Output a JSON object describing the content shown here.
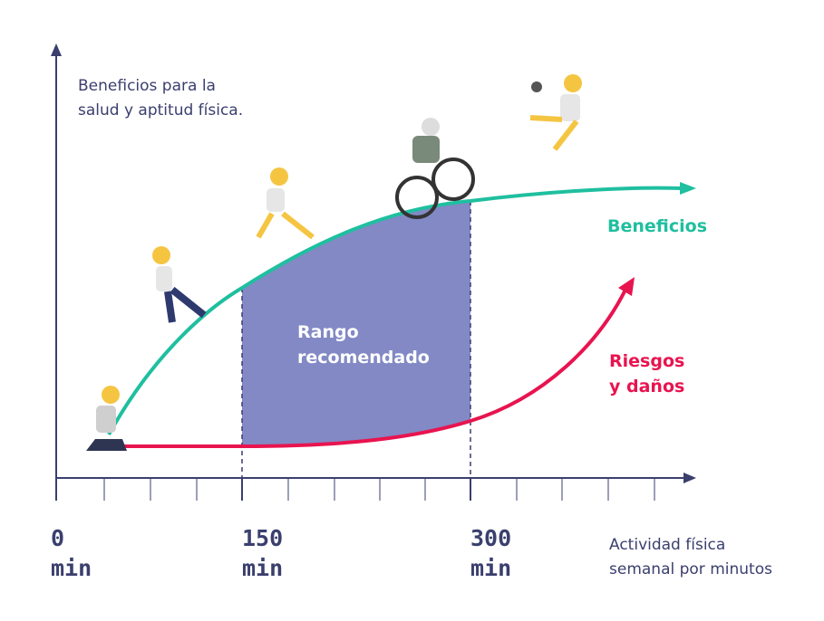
{
  "y_axis_label": [
    "Beneficios para la",
    "salud y aptitud física."
  ],
  "x_axis_label": [
    "Actividad física",
    "semanal por minutos"
  ],
  "x_labels": [
    [
      "0",
      "min"
    ],
    [
      "150",
      "min"
    ],
    [
      "300",
      "min"
    ]
  ],
  "benefits_label": "Beneficios",
  "risks_label": [
    "Riesgos",
    "y daños"
  ],
  "range_label": [
    "Rango",
    "recomendado"
  ]
}
